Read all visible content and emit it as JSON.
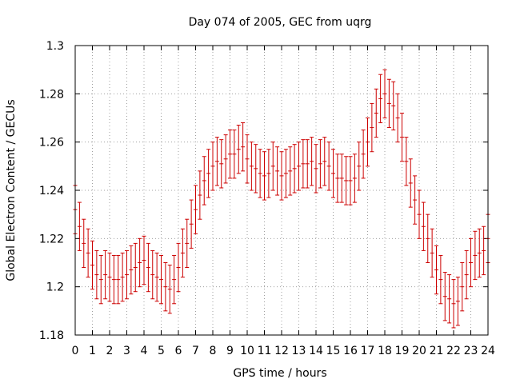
{
  "chart_data": {
    "type": "scatter",
    "title": "Day 074 of 2005, GEC from uqrg",
    "xlabel": "GPS time / hours",
    "ylabel": "Global Electron Content / GECUs",
    "xlim": [
      0,
      24
    ],
    "ylim": [
      1.18,
      1.3
    ],
    "x_ticks": [
      "0",
      "1",
      "2",
      "3",
      "4",
      "5",
      "6",
      "7",
      "8",
      "9",
      "10",
      "11",
      "12",
      "13",
      "14",
      "15",
      "16",
      "17",
      "18",
      "19",
      "20",
      "21",
      "22",
      "23",
      "24"
    ],
    "y_ticks": [
      "1.18",
      "1.2",
      "1.22",
      "1.24",
      "1.26",
      "1.28",
      "1.3"
    ],
    "grid": true,
    "error_bars": true,
    "series": [
      {
        "color": "#cc0000",
        "x": [
          0.0,
          0.25,
          0.5,
          0.75,
          1.0,
          1.25,
          1.5,
          1.75,
          2.0,
          2.25,
          2.5,
          2.75,
          3.0,
          3.25,
          3.5,
          3.75,
          4.0,
          4.25,
          4.5,
          4.75,
          5.0,
          5.25,
          5.5,
          5.75,
          6.0,
          6.25,
          6.5,
          6.75,
          7.0,
          7.25,
          7.5,
          7.75,
          8.0,
          8.25,
          8.5,
          8.75,
          9.0,
          9.25,
          9.5,
          9.75,
          10.0,
          10.25,
          10.5,
          10.75,
          11.0,
          11.25,
          11.5,
          11.75,
          12.0,
          12.25,
          12.5,
          12.75,
          13.0,
          13.25,
          13.5,
          13.75,
          14.0,
          14.25,
          14.5,
          14.75,
          15.0,
          15.25,
          15.5,
          15.75,
          16.0,
          16.25,
          16.5,
          16.75,
          17.0,
          17.25,
          17.5,
          17.75,
          18.0,
          18.25,
          18.5,
          18.75,
          19.0,
          19.25,
          19.5,
          19.75,
          20.0,
          20.25,
          20.5,
          20.75,
          21.0,
          21.25,
          21.5,
          21.75,
          22.0,
          22.25,
          22.5,
          22.75,
          23.0,
          23.25,
          23.5,
          23.75,
          24.0
        ],
        "y": [
          1.232,
          1.225,
          1.218,
          1.214,
          1.209,
          1.205,
          1.203,
          1.205,
          1.204,
          1.203,
          1.203,
          1.204,
          1.205,
          1.207,
          1.208,
          1.21,
          1.211,
          1.208,
          1.205,
          1.204,
          1.203,
          1.2,
          1.199,
          1.203,
          1.208,
          1.214,
          1.218,
          1.226,
          1.232,
          1.238,
          1.244,
          1.247,
          1.25,
          1.252,
          1.251,
          1.253,
          1.255,
          1.255,
          1.257,
          1.258,
          1.253,
          1.25,
          1.249,
          1.247,
          1.246,
          1.247,
          1.25,
          1.248,
          1.246,
          1.247,
          1.248,
          1.249,
          1.25,
          1.251,
          1.251,
          1.252,
          1.249,
          1.251,
          1.252,
          1.25,
          1.247,
          1.245,
          1.245,
          1.244,
          1.244,
          1.245,
          1.25,
          1.255,
          1.26,
          1.266,
          1.272,
          1.278,
          1.28,
          1.276,
          1.275,
          1.27,
          1.262,
          1.252,
          1.243,
          1.236,
          1.23,
          1.225,
          1.22,
          1.214,
          1.207,
          1.203,
          1.196,
          1.195,
          1.193,
          1.194,
          1.2,
          1.205,
          1.21,
          1.213,
          1.214,
          1.215,
          1.22
        ],
        "err": [
          0.01,
          0.01,
          0.01,
          0.01,
          0.01,
          0.01,
          0.01,
          0.01,
          0.01,
          0.01,
          0.01,
          0.01,
          0.01,
          0.01,
          0.01,
          0.01,
          0.01,
          0.01,
          0.01,
          0.01,
          0.01,
          0.01,
          0.01,
          0.01,
          0.01,
          0.01,
          0.01,
          0.01,
          0.01,
          0.01,
          0.01,
          0.01,
          0.01,
          0.01,
          0.01,
          0.01,
          0.01,
          0.01,
          0.01,
          0.01,
          0.01,
          0.01,
          0.01,
          0.01,
          0.01,
          0.01,
          0.01,
          0.01,
          0.01,
          0.01,
          0.01,
          0.01,
          0.01,
          0.01,
          0.01,
          0.01,
          0.01,
          0.01,
          0.01,
          0.01,
          0.01,
          0.01,
          0.01,
          0.01,
          0.01,
          0.01,
          0.01,
          0.01,
          0.01,
          0.01,
          0.01,
          0.01,
          0.01,
          0.01,
          0.01,
          0.01,
          0.01,
          0.01,
          0.01,
          0.01,
          0.01,
          0.01,
          0.01,
          0.01,
          0.01,
          0.01,
          0.01,
          0.01,
          0.01,
          0.01,
          0.01,
          0.01,
          0.01,
          0.01,
          0.01,
          0.01,
          0.01
        ]
      }
    ]
  }
}
